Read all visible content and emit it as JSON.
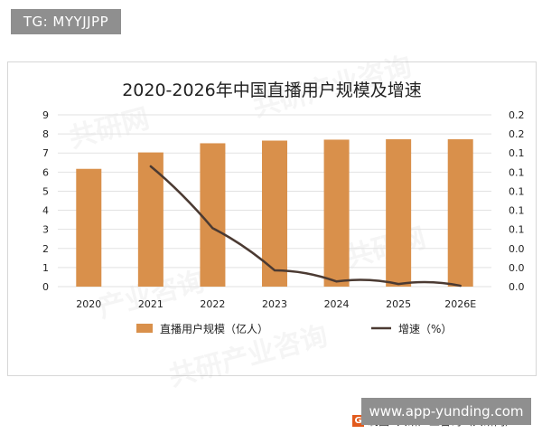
{
  "overlays": {
    "tg_text": "TG: MYYJJPP",
    "site_text": "www.app-yunding.com"
  },
  "colors": {
    "bar": "#d9904b",
    "line": "#4b3a32",
    "grid": "#e2e2e2",
    "text": "#222222"
  },
  "chart_data": {
    "type": "bar",
    "title": "2020-2026年中国直播用户规模及增速",
    "categories": [
      "2020",
      "2021",
      "2022",
      "2023",
      "2024",
      "2025",
      "2026E"
    ],
    "series": [
      {
        "name": "直播用户规模（亿人）",
        "values": [
          6.17,
          7.03,
          7.51,
          7.65,
          7.7,
          7.72,
          7.72
        ],
        "kind": "bar",
        "axis": "left"
      },
      {
        "name": "增速（%）",
        "values": [
          null,
          0.14,
          0.068,
          0.019,
          0.006,
          0.003,
          0.001
        ],
        "kind": "line",
        "axis": "right"
      }
    ],
    "left_axis": {
      "ylim": [
        0,
        9
      ],
      "ticks": [
        0,
        1,
        2,
        3,
        4,
        5,
        6,
        7,
        8,
        9
      ]
    },
    "right_axis": {
      "ylim": [
        0,
        0.2
      ],
      "tick_labels": [
        "0.0",
        "0.0",
        "0.0",
        "0.1",
        "0.1",
        "0.1",
        "0.1",
        "0.1",
        "0.2",
        "0.2"
      ]
    },
    "legend": {
      "position": "bottom",
      "items": [
        "直播用户规模（亿人）",
        "增速（%）"
      ]
    },
    "source": "制图: 共研产业咨询（共研网）",
    "grid": true
  },
  "icons": {
    "source_logo": "G"
  }
}
